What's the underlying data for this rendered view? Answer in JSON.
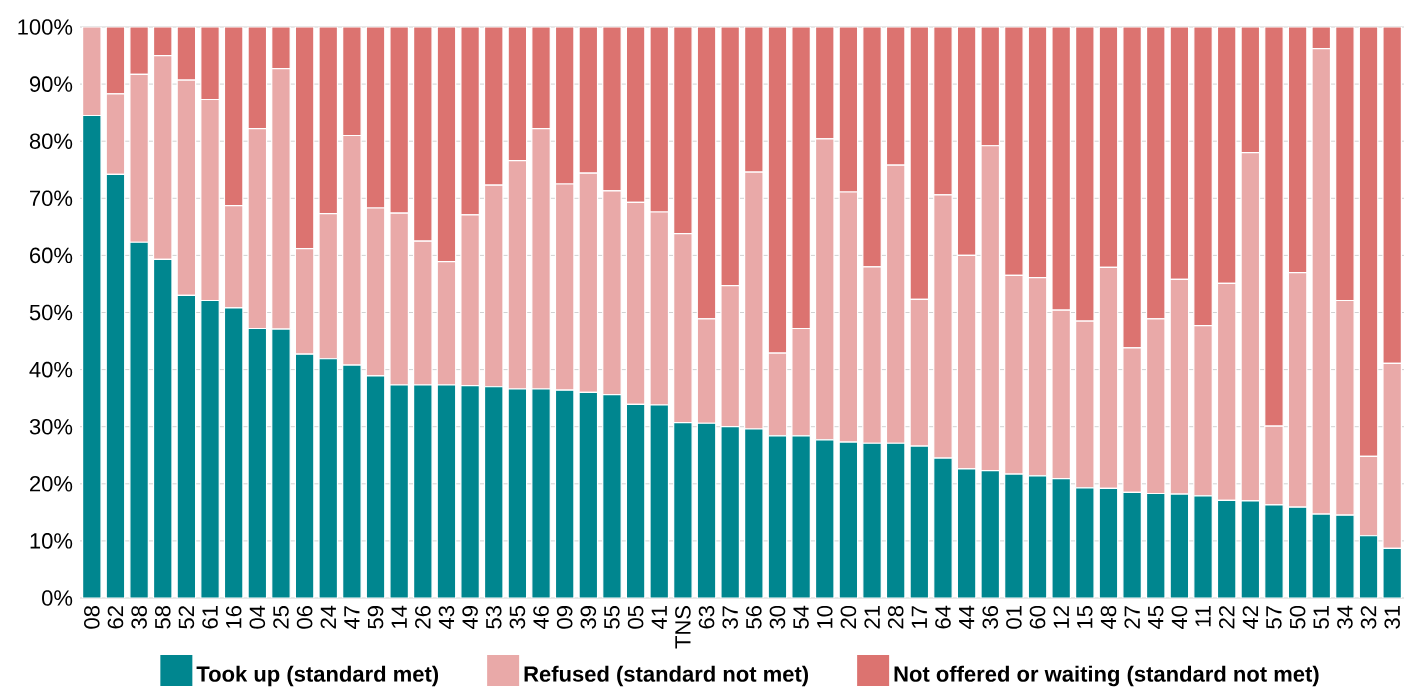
{
  "chart_data": {
    "type": "bar",
    "stacked": true,
    "grid": "y",
    "legend": "bottom",
    "categories": [
      "08",
      "62",
      "38",
      "58",
      "52",
      "61",
      "16",
      "04",
      "25",
      "06",
      "24",
      "47",
      "59",
      "14",
      "26",
      "43",
      "49",
      "53",
      "35",
      "46",
      "09",
      "39",
      "55",
      "05",
      "41",
      "TNS",
      "63",
      "37",
      "56",
      "30",
      "54",
      "10",
      "20",
      "21",
      "28",
      "17",
      "64",
      "44",
      "36",
      "01",
      "60",
      "12",
      "15",
      "48",
      "27",
      "45",
      "40",
      "11",
      "22",
      "42",
      "57",
      "50",
      "51",
      "34",
      "32",
      "31"
    ],
    "ylim": [
      0,
      100
    ],
    "yticks": [
      {
        "value": 0,
        "label": "0%"
      },
      {
        "value": 10,
        "label": "10%"
      },
      {
        "value": 20,
        "label": "20%"
      },
      {
        "value": 30,
        "label": "30%"
      },
      {
        "value": 40,
        "label": "40%"
      },
      {
        "value": 50,
        "label": "50%"
      },
      {
        "value": 60,
        "label": "60%"
      },
      {
        "value": 70,
        "label": "70%"
      },
      {
        "value": 80,
        "label": "80%"
      },
      {
        "value": 90,
        "label": "90%"
      },
      {
        "value": 100,
        "label": "100%"
      }
    ],
    "series": [
      {
        "name": "Took up (standard met)",
        "color": "#00868f",
        "values": [
          84.5,
          74.2,
          62.3,
          59.3,
          53.0,
          52.1,
          50.8,
          47.2,
          47.1,
          42.7,
          41.9,
          40.8,
          38.9,
          37.3,
          37.3,
          37.3,
          37.2,
          37.0,
          36.6,
          36.6,
          36.4,
          36.0,
          35.6,
          33.9,
          33.8,
          30.7,
          30.6,
          30.0,
          29.6,
          28.4,
          28.4,
          27.7,
          27.3,
          27.1,
          27.1,
          26.6,
          24.5,
          22.6,
          22.3,
          21.7,
          21.4,
          20.9,
          19.3,
          19.2,
          18.5,
          18.3,
          18.2,
          17.9,
          17.1,
          17.0,
          16.3,
          15.9,
          14.7,
          14.5,
          10.9,
          8.7
        ]
      },
      {
        "name": "Refused (standard not met)",
        "color": "#e9a9a8",
        "values": [
          15.5,
          14.1,
          29.4,
          35.7,
          37.7,
          35.2,
          17.9,
          35.0,
          45.6,
          18.5,
          25.4,
          40.2,
          29.4,
          30.1,
          25.2,
          21.6,
          29.9,
          35.3,
          40.0,
          45.6,
          36.1,
          38.4,
          35.7,
          35.4,
          33.8,
          33.1,
          18.3,
          24.7,
          45.0,
          14.5,
          18.8,
          52.7,
          43.8,
          30.9,
          48.7,
          25.7,
          46.1,
          37.4,
          56.9,
          34.8,
          34.7,
          29.5,
          29.2,
          38.7,
          25.3,
          30.6,
          37.6,
          29.8,
          38.0,
          61.0,
          13.8,
          41.1,
          81.5,
          37.6,
          13.9,
          32.4
        ]
      },
      {
        "name": "Not offered or waiting (standard not met)",
        "color": "#dc7370",
        "values": [
          0,
          11.7,
          8.3,
          5.0,
          9.3,
          12.7,
          31.3,
          17.8,
          7.3,
          38.8,
          32.7,
          19.0,
          31.7,
          32.6,
          37.5,
          41.1,
          32.9,
          27.7,
          23.4,
          17.8,
          27.5,
          25.6,
          28.7,
          30.7,
          32.4,
          36.2,
          51.1,
          45.3,
          25.4,
          57.1,
          52.8,
          19.6,
          28.9,
          42.0,
          24.2,
          47.7,
          29.4,
          40.0,
          20.8,
          43.5,
          43.9,
          49.6,
          51.5,
          42.1,
          56.2,
          51.1,
          44.2,
          52.3,
          44.9,
          22.0,
          69.9,
          43.0,
          3.8,
          47.9,
          75.2,
          58.9
        ]
      }
    ]
  }
}
